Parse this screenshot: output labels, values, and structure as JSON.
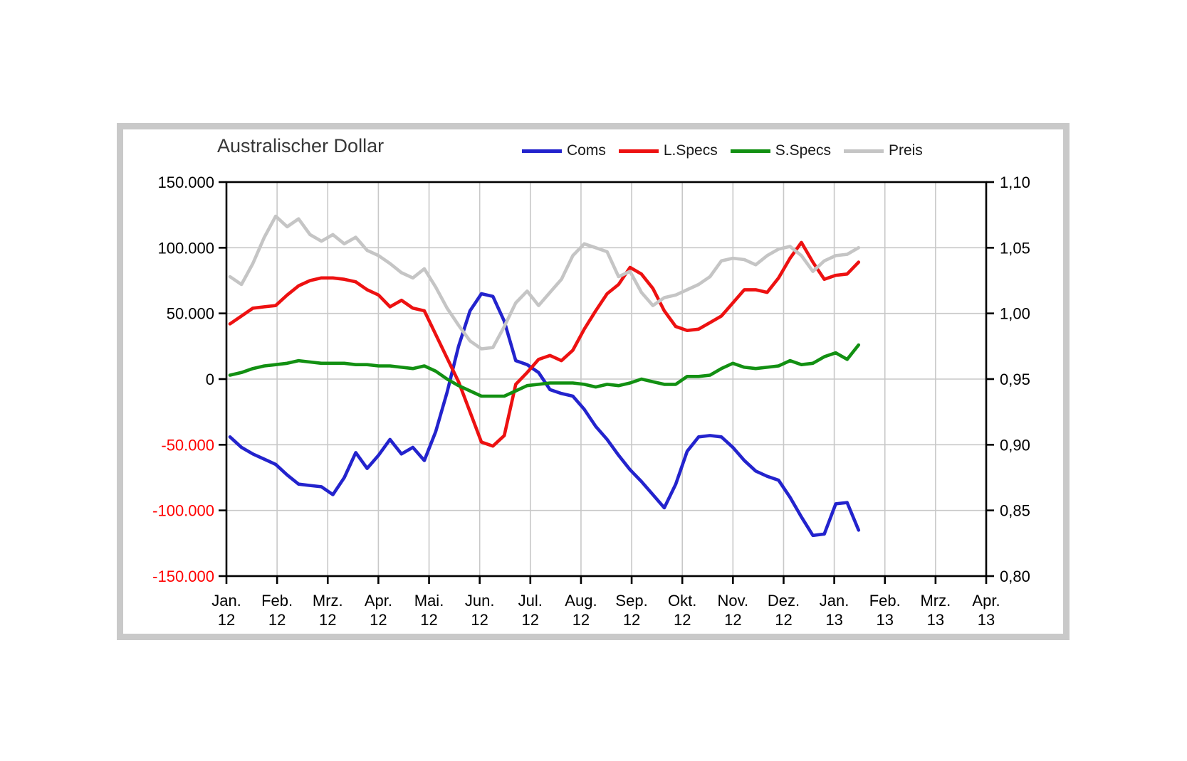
{
  "window": {
    "background_color": "#ffffff",
    "frame_color": "#c9c9c9"
  },
  "chart_data": {
    "type": "line",
    "title": "Australischer Dollar",
    "legend_position": "top-right",
    "grid": true,
    "gridline_color": "#c8c8c8",
    "axis_color": "#000000",
    "left_axis": {
      "ticks": [
        "150.000",
        "100.000",
        "50.000",
        "0",
        "-50.000",
        "-100.000",
        "-150.000"
      ],
      "values": [
        150000,
        100000,
        50000,
        0,
        -50000,
        -100000,
        -150000
      ],
      "range": [
        -150000,
        150000
      ],
      "positive_label_color": "#000000",
      "negative_label_color": "#ff0000"
    },
    "right_axis": {
      "ticks": [
        "1,10",
        "1,05",
        "1,00",
        "0,95",
        "0,90",
        "0,85",
        "0,80"
      ],
      "values": [
        1.1,
        1.05,
        1.0,
        0.95,
        0.9,
        0.85,
        0.8
      ],
      "range": [
        0.8,
        1.1
      ],
      "label_color": "#000000"
    },
    "x_axis": {
      "tick_labels_line1": [
        "Jan.",
        "Feb.",
        "Mrz.",
        "Apr.",
        "Mai.",
        "Jun.",
        "Jul.",
        "Aug.",
        "Sep.",
        "Okt.",
        "Nov.",
        "Dez.",
        "Jan.",
        "Feb.",
        "Mrz.",
        "Apr."
      ],
      "tick_labels_line2": [
        "12",
        "12",
        "12",
        "12",
        "12",
        "12",
        "12",
        "12",
        "12",
        "12",
        "12",
        "12",
        "13",
        "13",
        "13",
        "13"
      ]
    },
    "series": [
      {
        "name": "Coms",
        "color": "#2323cd",
        "axis": "left",
        "values": [
          -44000,
          -52000,
          -57000,
          -61000,
          -65000,
          -73000,
          -80000,
          -81000,
          -82000,
          -88000,
          -75000,
          -56000,
          -68000,
          -58000,
          -46000,
          -57000,
          -52000,
          -62000,
          -40000,
          -10000,
          25000,
          52000,
          65000,
          63000,
          44000,
          14000,
          11000,
          5000,
          -8000,
          -11000,
          -13000,
          -23000,
          -36000,
          -46000,
          -58000,
          -69000,
          -78000,
          -88000,
          -98000,
          -80000,
          -55000,
          -44000,
          -43000,
          -44000,
          -52000,
          -62000,
          -70000,
          -74000,
          -77000,
          -90000,
          -105000,
          -119000,
          -118000,
          -95000,
          -94000,
          -115000
        ]
      },
      {
        "name": "L.Specs",
        "color": "#ed1111",
        "axis": "left",
        "values": [
          42000,
          48000,
          54000,
          55000,
          56000,
          64000,
          71000,
          75000,
          77000,
          77000,
          76000,
          74000,
          68000,
          64000,
          55000,
          60000,
          54000,
          52000,
          34000,
          16000,
          -2000,
          -25000,
          -48000,
          -51000,
          -43000,
          -4000,
          5000,
          15000,
          18000,
          14000,
          22000,
          38000,
          52000,
          65000,
          72000,
          85000,
          80000,
          69000,
          52000,
          40000,
          37000,
          38000,
          43000,
          48000,
          58000,
          68000,
          68000,
          66000,
          77000,
          92000,
          104000,
          89000,
          76000,
          79000,
          80000,
          89000
        ]
      },
      {
        "name": "S.Specs",
        "color": "#129012",
        "axis": "left",
        "values": [
          3000,
          5000,
          8000,
          10000,
          11000,
          12000,
          14000,
          13000,
          12000,
          12000,
          12000,
          11000,
          11000,
          10000,
          10000,
          9000,
          8000,
          10000,
          6000,
          0,
          -5000,
          -9000,
          -13000,
          -13000,
          -13000,
          -9000,
          -5000,
          -4000,
          -3000,
          -3000,
          -3000,
          -4000,
          -6000,
          -4000,
          -5000,
          -3000,
          0,
          -2000,
          -4000,
          -4000,
          2000,
          2000,
          3000,
          8000,
          12000,
          9000,
          8000,
          9000,
          10000,
          14000,
          11000,
          12000,
          17000,
          20000,
          15000,
          26000
        ]
      },
      {
        "name": "Preis",
        "color": "#c5c5c5",
        "axis": "right",
        "values": [
          1.028,
          1.022,
          1.038,
          1.058,
          1.074,
          1.066,
          1.072,
          1.06,
          1.055,
          1.06,
          1.053,
          1.058,
          1.048,
          1.044,
          1.038,
          1.031,
          1.027,
          1.034,
          1.02,
          1.004,
          0.991,
          0.979,
          0.973,
          0.974,
          0.99,
          1.008,
          1.017,
          1.006,
          1.016,
          1.026,
          1.044,
          1.053,
          1.05,
          1.047,
          1.028,
          1.032,
          1.016,
          1.006,
          1.012,
          1.014,
          1.018,
          1.022,
          1.028,
          1.04,
          1.042,
          1.041,
          1.037,
          1.044,
          1.049,
          1.051,
          1.044,
          1.032,
          1.04,
          1.044,
          1.045,
          1.05
        ]
      }
    ]
  }
}
